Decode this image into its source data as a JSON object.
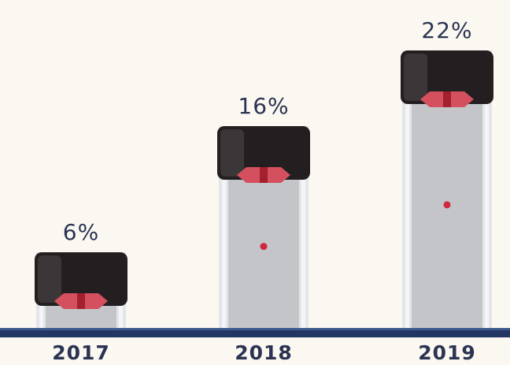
{
  "chart_data": {
    "type": "bar",
    "categories": [
      "2017",
      "2018",
      "2019"
    ],
    "values": [
      6,
      16,
      22
    ],
    "value_labels": [
      "6%",
      "16%",
      "22%"
    ],
    "color": "#231f20"
  }
}
